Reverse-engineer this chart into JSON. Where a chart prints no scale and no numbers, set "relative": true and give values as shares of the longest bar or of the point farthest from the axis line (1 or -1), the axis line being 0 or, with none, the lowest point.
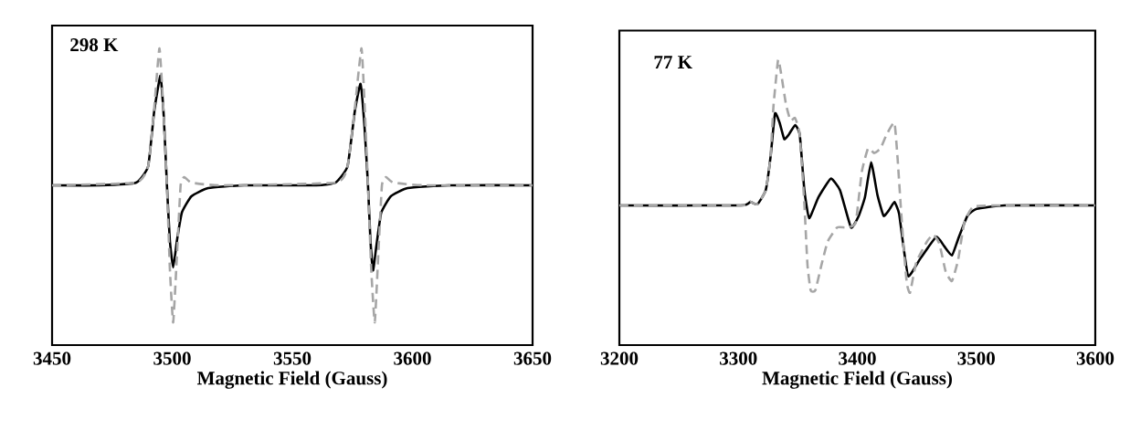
{
  "chart_data": [
    {
      "type": "line",
      "relative": true,
      "xlabel": "Magnetic Field (Gauss)",
      "xlim": [
        3450,
        3650
      ],
      "xticks": [
        3450,
        3500,
        3550,
        3600,
        3650
      ],
      "annotations": [
        "298 K"
      ],
      "series": [
        {
          "color": "#000000",
          "line_style": "solid",
          "x": [
            3450,
            3470,
            3485,
            3490,
            3492.5,
            3495.1,
            3496.5,
            3497.8,
            3499,
            3500.4,
            3502,
            3504,
            3508,
            3515,
            3530,
            3560,
            3568,
            3573,
            3576,
            3578.4,
            3580,
            3581.5,
            3582.5,
            3583.6,
            3585,
            3587,
            3591,
            3598,
            3615,
            3650
          ],
          "values": [
            0.5,
            0.5,
            0.51,
            0.57,
            0.77,
            0.9,
            0.75,
            0.5,
            0.3,
            0.2,
            0.3,
            0.4,
            0.46,
            0.49,
            0.5,
            0.5,
            0.51,
            0.57,
            0.77,
            0.87,
            0.72,
            0.5,
            0.3,
            0.19,
            0.28,
            0.4,
            0.46,
            0.49,
            0.5,
            0.5
          ]
        },
        {
          "color": "#a6a6a6",
          "line_style": "dashed",
          "x": [
            3450,
            3485,
            3490,
            3492.5,
            3494.7,
            3496.5,
            3497.8,
            3499,
            3500.4,
            3502,
            3503.5,
            3505,
            3508,
            3520,
            3568,
            3573,
            3576,
            3578.8,
            3580.3,
            3581.5,
            3582.8,
            3584.3,
            3585.8,
            3587.3,
            3589,
            3592,
            3605,
            3650
          ],
          "values": [
            0.5,
            0.51,
            0.57,
            0.78,
            1.0,
            0.75,
            0.5,
            0.2,
            0.0,
            0.25,
            0.5,
            0.53,
            0.51,
            0.5,
            0.51,
            0.57,
            0.78,
            1.0,
            0.75,
            0.5,
            0.2,
            0.0,
            0.25,
            0.5,
            0.53,
            0.51,
            0.5,
            0.5
          ]
        }
      ]
    },
    {
      "type": "line",
      "relative": true,
      "xlabel": "Magnetic Field (Gauss)",
      "xlim": [
        3200,
        3600
      ],
      "xticks": [
        3200,
        3300,
        3400,
        3500,
        3600
      ],
      "annotations": [
        "77 K"
      ],
      "series": [
        {
          "color": "#000000",
          "line_style": "solid",
          "x": [
            3200,
            3302,
            3310,
            3316,
            3323,
            3327,
            3330.8,
            3334.7,
            3338.6,
            3342.5,
            3347.7,
            3351.6,
            3355.5,
            3359.5,
            3367.3,
            3377.7,
            3385.5,
            3394.7,
            3401.2,
            3406.4,
            3411.6,
            3416.9,
            3422.1,
            3427.3,
            3431.2,
            3435.1,
            3439,
            3443,
            3453.4,
            3466.4,
            3473,
            3479.5,
            3484.7,
            3492.5,
            3500.3,
            3523.8,
            3600
          ],
          "values": [
            0.375,
            0.375,
            0.39,
            0.38,
            0.44,
            0.58,
            0.77,
            0.73,
            0.66,
            0.68,
            0.72,
            0.68,
            0.44,
            0.32,
            0.41,
            0.49,
            0.44,
            0.28,
            0.33,
            0.41,
            0.56,
            0.42,
            0.33,
            0.36,
            0.39,
            0.34,
            0.19,
            0.07,
            0.15,
            0.24,
            0.2,
            0.16,
            0.23,
            0.33,
            0.36,
            0.375,
            0.375
          ]
        },
        {
          "color": "#a6a6a6",
          "line_style": "dashed",
          "x": [
            3200,
            3302,
            3310,
            3316,
            3323,
            3327,
            3329.5,
            3333.4,
            3336,
            3340,
            3343.8,
            3347.7,
            3351.6,
            3355.5,
            3358.1,
            3360.8,
            3364.7,
            3369.9,
            3375.1,
            3383,
            3390.8,
            3398.6,
            3403.8,
            3409,
            3414.2,
            3419.5,
            3424.7,
            3431.2,
            3433.8,
            3436.4,
            3439,
            3441.6,
            3444.3,
            3449.5,
            3458.6,
            3463.8,
            3469,
            3474.3,
            3479.5,
            3484.7,
            3489.9,
            3497.7,
            3523.8,
            3600
          ],
          "values": [
            0.375,
            0.375,
            0.39,
            0.38,
            0.44,
            0.58,
            0.8,
            1.0,
            0.94,
            0.81,
            0.74,
            0.75,
            0.68,
            0.38,
            0.12,
            0.01,
            0.01,
            0.12,
            0.22,
            0.28,
            0.28,
            0.3,
            0.52,
            0.62,
            0.6,
            0.62,
            0.68,
            0.73,
            0.58,
            0.38,
            0.19,
            0.04,
            0.0,
            0.13,
            0.22,
            0.25,
            0.21,
            0.09,
            0.05,
            0.14,
            0.3,
            0.37,
            0.375,
            0.375
          ]
        }
      ]
    }
  ]
}
